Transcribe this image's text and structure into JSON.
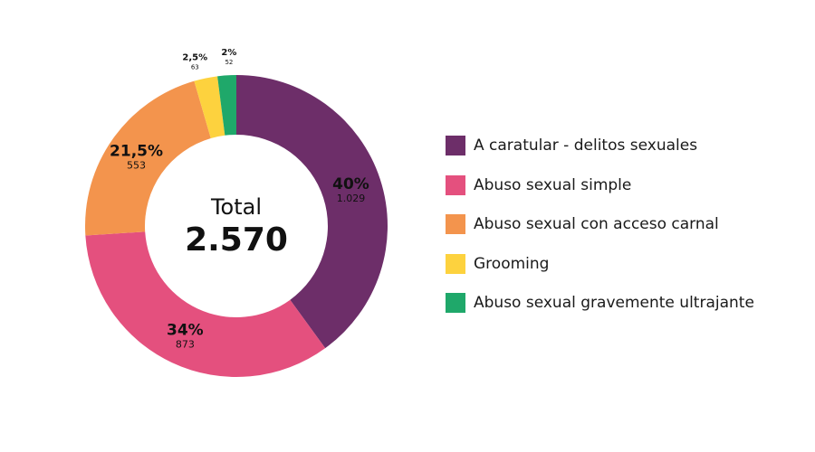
{
  "chart_data": {
    "type": "pie",
    "center_label": "Total",
    "total": "2.570",
    "slices": [
      {
        "name": "A caratular - delitos sexuales",
        "percent": 40,
        "percent_label": "40%",
        "count": 1029,
        "count_label": "1.029",
        "color": "#6d2e69"
      },
      {
        "name": "Abuso sexual simple",
        "percent": 34,
        "percent_label": "34%",
        "count": 873,
        "count_label": "873",
        "color": "#e4507e"
      },
      {
        "name": "Abuso sexual con acceso carnal",
        "percent": 21.5,
        "percent_label": "21,5%",
        "count": 553,
        "count_label": "553",
        "color": "#f3944d"
      },
      {
        "name": "Grooming",
        "percent": 2.5,
        "percent_label": "2,5%",
        "count": 63,
        "count_label": "63",
        "color": "#fdd23e"
      },
      {
        "name": "Abuso sexual gravemente ultrajante",
        "percent": 2,
        "percent_label": "2%",
        "count": 52,
        "count_label": "52",
        "color": "#1fa86a"
      }
    ],
    "legend_position": "right"
  }
}
